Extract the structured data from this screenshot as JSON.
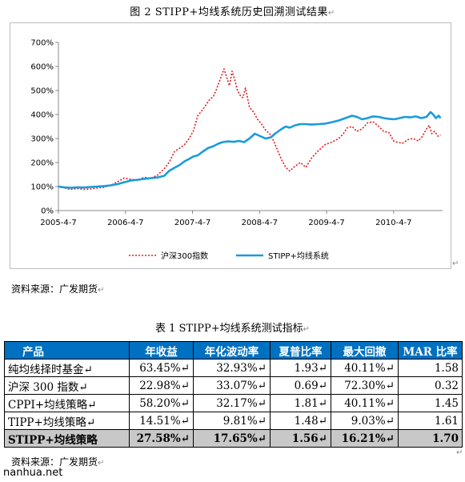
{
  "figure_caption": "图 2   STIPP+均线系统历史回溯测试结果",
  "source_note_1": "资料来源：广发期货",
  "table_caption": "表 1   STIPP+均线系统测试指标",
  "source_note_2": "资料来源：广发期货",
  "watermark": "nanhua.net",
  "paragraph_mark": "↵",
  "colors": {
    "series_red": "#e31a1c",
    "series_blue": "#1a9bdc",
    "table_header": "#0070c0",
    "highlight_row": "#c8c8c8"
  },
  "chart_data": {
    "type": "line",
    "x_ticks": [
      "2005-4-7",
      "2006-4-7",
      "2007-4-7",
      "2008-4-7",
      "2009-4-7",
      "2010-4-7"
    ],
    "y_ticks": [
      "0%",
      "100%",
      "200%",
      "300%",
      "400%",
      "500%",
      "600%",
      "700%"
    ],
    "ylim": [
      0,
      700
    ],
    "xlim": [
      2005.27,
      2011.0
    ],
    "grid": false,
    "legend_position": "bottom",
    "series": [
      {
        "name": "沪深300指数",
        "style": "dotted",
        "color": "#e31a1c",
        "x": [
          2005.27,
          2005.35,
          2005.45,
          2005.55,
          2005.65,
          2005.75,
          2005.85,
          2005.95,
          2006.05,
          2006.15,
          2006.25,
          2006.35,
          2006.45,
          2006.55,
          2006.65,
          2006.75,
          2006.85,
          2006.92,
          2007.0,
          2007.08,
          2007.15,
          2007.22,
          2007.28,
          2007.35,
          2007.42,
          2007.47,
          2007.52,
          2007.58,
          2007.62,
          2007.66,
          2007.7,
          2007.74,
          2007.78,
          2007.82,
          2007.86,
          2007.9,
          2007.94,
          2007.98,
          2008.02,
          2008.06,
          2008.12,
          2008.18,
          2008.24,
          2008.3,
          2008.36,
          2008.42,
          2008.48,
          2008.54,
          2008.6,
          2008.66,
          2008.72,
          2008.8,
          2008.88,
          2008.96,
          2009.05,
          2009.15,
          2009.25,
          2009.35,
          2009.45,
          2009.52,
          2009.58,
          2009.65,
          2009.72,
          2009.8,
          2009.88,
          2009.96,
          2010.05,
          2010.12,
          2010.2,
          2010.27,
          2010.32,
          2010.4,
          2010.48,
          2010.56,
          2010.64,
          2010.7,
          2010.76,
          2010.8,
          2010.84,
          2010.88,
          2010.93,
          2010.97
        ],
        "y": [
          100,
          95,
          88,
          92,
          88,
          90,
          94,
          97,
          105,
          120,
          135,
          130,
          128,
          138,
          135,
          148,
          175,
          200,
          245,
          260,
          275,
          300,
          330,
          395,
          420,
          440,
          460,
          475,
          500,
          530,
          560,
          590,
          555,
          520,
          580,
          545,
          500,
          480,
          470,
          510,
          430,
          410,
          380,
          360,
          335,
          320,
          290,
          250,
          210,
          180,
          165,
          185,
          200,
          180,
          220,
          250,
          275,
          285,
          300,
          320,
          345,
          350,
          330,
          340,
          365,
          370,
          350,
          330,
          325,
          290,
          285,
          280,
          295,
          300,
          290,
          310,
          340,
          355,
          320,
          330,
          310,
          315
        ]
      },
      {
        "name": "STIPP+均线系统",
        "style": "solid",
        "color": "#1a9bdc",
        "x": [
          2005.27,
          2005.35,
          2005.45,
          2005.55,
          2005.65,
          2005.75,
          2005.85,
          2005.95,
          2006.05,
          2006.15,
          2006.25,
          2006.35,
          2006.45,
          2006.55,
          2006.65,
          2006.75,
          2006.85,
          2006.92,
          2007.0,
          2007.08,
          2007.15,
          2007.22,
          2007.28,
          2007.35,
          2007.42,
          2007.5,
          2007.58,
          2007.65,
          2007.72,
          2007.8,
          2007.88,
          2007.96,
          2008.04,
          2008.12,
          2008.2,
          2008.28,
          2008.36,
          2008.44,
          2008.5,
          2008.55,
          2008.6,
          2008.66,
          2008.72,
          2008.8,
          2008.88,
          2008.96,
          2009.05,
          2009.15,
          2009.25,
          2009.35,
          2009.45,
          2009.55,
          2009.65,
          2009.72,
          2009.8,
          2009.88,
          2009.96,
          2010.05,
          2010.12,
          2010.2,
          2010.28,
          2010.36,
          2010.44,
          2010.52,
          2010.6,
          2010.68,
          2010.76,
          2010.82,
          2010.86,
          2010.9,
          2010.94,
          2010.97
        ],
        "y": [
          100,
          97,
          95,
          97,
          96,
          98,
          100,
          102,
          105,
          110,
          118,
          125,
          128,
          132,
          135,
          138,
          145,
          165,
          178,
          190,
          205,
          215,
          225,
          230,
          245,
          260,
          268,
          278,
          285,
          288,
          286,
          290,
          285,
          300,
          320,
          310,
          300,
          305,
          320,
          330,
          340,
          350,
          345,
          355,
          360,
          360,
          358,
          360,
          362,
          368,
          375,
          385,
          395,
          390,
          380,
          385,
          392,
          390,
          385,
          382,
          380,
          385,
          390,
          388,
          392,
          385,
          390,
          410,
          400,
          385,
          395,
          385
        ]
      }
    ]
  }
}
